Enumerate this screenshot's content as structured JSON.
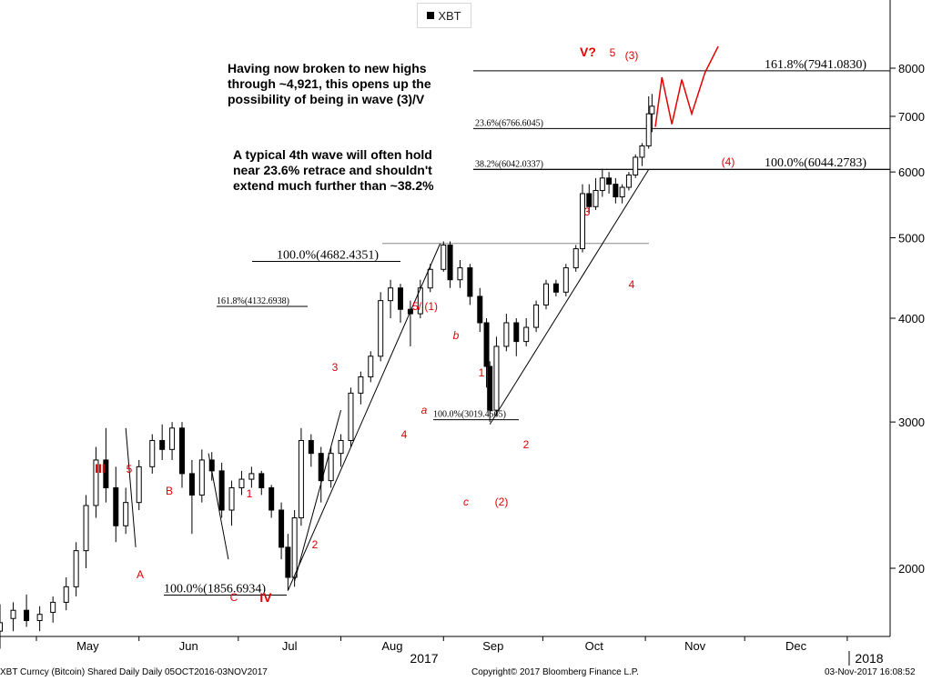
{
  "legend": {
    "label": "XBT"
  },
  "annotations": {
    "note1": [
      "Having now broken to new highs",
      "through ~4,921, this opens up the",
      "possibility of being in wave (3)/V"
    ],
    "note2": [
      "A typical 4th wave will often hold",
      "near 23.6% retrace and shouldn't",
      "extend much further than ~38.2%"
    ]
  },
  "footer": {
    "left": "XBT Curncy (Bitcoin) Shared Daily  Daily 05OCT2016-03NOV2017",
    "center": "Copyright© 2017 Bloomberg Finance L.P.",
    "right": "03-Nov-2017 16:08:52"
  },
  "colors": {
    "wave_label": "#e00000",
    "candle": "#000000",
    "projection": "#e00000"
  },
  "chart_data": {
    "type": "candlestick",
    "x_axis": {
      "months": [
        "May",
        "Jun",
        "Jul",
        "Aug",
        "Sep",
        "Oct",
        "Nov",
        "Dec"
      ],
      "year_labels": [
        "2017",
        "2018"
      ],
      "range": [
        "2017-04-20",
        "2018-01-20"
      ]
    },
    "y_axis": {
      "ticks": [
        2000,
        3000,
        4000,
        5000,
        6000,
        7000,
        8000
      ],
      "range": [
        1500,
        8700
      ],
      "position": "right"
    },
    "series": [
      {
        "values": [
          [
            "2017-04-20",
            1680,
            1810,
            1600,
            1720
          ],
          [
            "2017-04-24",
            1740,
            1820,
            1680,
            1780
          ],
          [
            "2017-04-28",
            1780,
            1860,
            1700,
            1730
          ],
          [
            "2017-05-02",
            1730,
            1800,
            1680,
            1760
          ],
          [
            "2017-05-06",
            1770,
            1850,
            1720,
            1820
          ],
          [
            "2017-05-10",
            1820,
            1950,
            1780,
            1900
          ],
          [
            "2017-05-13",
            1900,
            2150,
            1850,
            2100
          ],
          [
            "2017-05-16",
            2100,
            2450,
            2000,
            2380
          ],
          [
            "2017-05-19",
            2380,
            2800,
            2300,
            2700
          ],
          [
            "2017-05-22",
            2700,
            2950,
            2400,
            2500
          ],
          [
            "2017-05-25",
            2500,
            2650,
            2150,
            2250
          ],
          [
            "2017-05-28",
            2250,
            2500,
            2200,
            2400
          ],
          [
            "2017-06-01",
            2400,
            2700,
            2350,
            2650
          ],
          [
            "2017-06-05",
            2650,
            2900,
            2600,
            2850
          ],
          [
            "2017-06-08",
            2850,
            2980,
            2700,
            2780
          ],
          [
            "2017-06-11",
            2780,
            3000,
            2700,
            2950
          ],
          [
            "2017-06-14",
            2950,
            3000,
            2500,
            2600
          ],
          [
            "2017-06-17",
            2600,
            2700,
            2200,
            2450
          ],
          [
            "2017-06-20",
            2450,
            2780,
            2400,
            2700
          ],
          [
            "2017-06-23",
            2700,
            2760,
            2550,
            2620
          ],
          [
            "2017-06-26",
            2620,
            2680,
            2300,
            2350
          ],
          [
            "2017-06-29",
            2350,
            2550,
            2250,
            2500
          ],
          [
            "2017-07-02",
            2500,
            2620,
            2450,
            2560
          ],
          [
            "2017-07-05",
            2560,
            2650,
            2500,
            2600
          ],
          [
            "2017-07-08",
            2600,
            2620,
            2450,
            2500
          ],
          [
            "2017-07-11",
            2500,
            2520,
            2300,
            2350
          ],
          [
            "2017-07-14",
            2350,
            2400,
            2050,
            2120
          ],
          [
            "2017-07-16",
            2120,
            2200,
            1880,
            1950
          ],
          [
            "2017-07-18",
            1950,
            2350,
            1900,
            2300
          ],
          [
            "2017-07-20",
            2300,
            2950,
            2250,
            2850
          ],
          [
            "2017-07-23",
            2850,
            2900,
            2650,
            2750
          ],
          [
            "2017-07-26",
            2750,
            2800,
            2400,
            2550
          ],
          [
            "2017-07-29",
            2550,
            2800,
            2500,
            2750
          ],
          [
            "2017-08-01",
            2750,
            2900,
            2650,
            2850
          ],
          [
            "2017-08-04",
            2850,
            3300,
            2800,
            3250
          ],
          [
            "2017-08-07",
            3250,
            3450,
            3150,
            3400
          ],
          [
            "2017-08-10",
            3400,
            3650,
            3350,
            3600
          ],
          [
            "2017-08-13",
            3600,
            4300,
            3550,
            4200
          ],
          [
            "2017-08-16",
            4200,
            4450,
            4000,
            4350
          ],
          [
            "2017-08-19",
            4350,
            4400,
            3950,
            4100
          ],
          [
            "2017-08-22",
            4100,
            4200,
            3700,
            4050
          ],
          [
            "2017-08-25",
            4050,
            4450,
            4000,
            4350
          ],
          [
            "2017-08-28",
            4350,
            4650,
            4300,
            4580
          ],
          [
            "2017-09-01",
            4580,
            4950,
            4550,
            4900
          ],
          [
            "2017-09-03",
            4900,
            4950,
            4350,
            4450
          ],
          [
            "2017-09-06",
            4450,
            4700,
            4350,
            4600
          ],
          [
            "2017-09-09",
            4600,
            4650,
            4150,
            4250
          ],
          [
            "2017-09-12",
            4250,
            4350,
            3850,
            3950
          ],
          [
            "2017-09-14",
            3950,
            4000,
            3300,
            3500
          ],
          [
            "2017-09-15",
            3500,
            3550,
            3000,
            3100
          ],
          [
            "2017-09-17",
            3100,
            3800,
            3050,
            3700
          ],
          [
            "2017-09-20",
            3700,
            4050,
            3650,
            3950
          ],
          [
            "2017-09-23",
            3950,
            4000,
            3600,
            3750
          ],
          [
            "2017-09-26",
            3750,
            4000,
            3700,
            3900
          ],
          [
            "2017-09-29",
            3900,
            4200,
            3850,
            4150
          ],
          [
            "2017-10-02",
            4150,
            4450,
            4100,
            4400
          ],
          [
            "2017-10-05",
            4400,
            4450,
            4250,
            4300
          ],
          [
            "2017-10-08",
            4300,
            4650,
            4250,
            4600
          ],
          [
            "2017-10-11",
            4600,
            4900,
            4550,
            4850
          ],
          [
            "2017-10-13",
            4850,
            5800,
            4800,
            5650
          ],
          [
            "2017-10-15",
            5650,
            5800,
            5350,
            5450
          ],
          [
            "2017-10-17",
            5450,
            5900,
            5400,
            5700
          ],
          [
            "2017-10-19",
            5700,
            6050,
            5600,
            5900
          ],
          [
            "2017-10-21",
            5900,
            6000,
            5650,
            5800
          ],
          [
            "2017-10-23",
            5800,
            5900,
            5500,
            5600
          ],
          [
            "2017-10-25",
            5600,
            5800,
            5500,
            5750
          ],
          [
            "2017-10-27",
            5750,
            6000,
            5700,
            5950
          ],
          [
            "2017-10-29",
            5950,
            6300,
            5900,
            6250
          ],
          [
            "2017-10-31",
            6250,
            6500,
            6100,
            6450
          ],
          [
            "2017-11-02",
            6450,
            7400,
            6400,
            7050
          ],
          [
            "2017-11-03",
            7050,
            7450,
            6700,
            7200
          ]
        ]
      },
      {
        "name": "",
        "type": "line",
        "values": [
          [
            "2017-11-04",
            6800
          ],
          [
            "2017-11-06",
            7800
          ],
          [
            "2017-11-09",
            6850
          ],
          [
            "2017-11-12",
            7750
          ],
          [
            "2017-11-15",
            7050
          ],
          [
            "2017-11-19",
            7900
          ],
          [
            "2017-11-23",
            8500
          ]
        ]
      }
    ],
    "fib_levels": [
      {
        "label": "161.8%(7941.0830)",
        "value": 7941.083
      },
      {
        "label": "23.6%(6766.6045)",
        "value": 6766.6045
      },
      {
        "label": "38.2%(6042.0337)",
        "value": 6042.0337
      },
      {
        "label": "100.0%(6044.2783)",
        "value": 6044.2783
      },
      {
        "label": "",
        "value": 4921
      },
      {
        "label": "100.0%(4682.4351)",
        "value": 4682.4351
      },
      {
        "label": "161.8%(4132.6938)",
        "value": 4132.6938
      },
      {
        "label": "100.0%(3019.4565)",
        "value": 3019.4565
      },
      {
        "label": "100.0%(1856.6934)",
        "value": 1856.6934
      }
    ],
    "wave_labels": [
      "III",
      "5",
      "A",
      "B",
      "C",
      "IV",
      "1",
      "2",
      "3",
      "4",
      "5/ (1)",
      "a",
      "b",
      "c",
      "(2)",
      "1",
      "2",
      "3",
      "4",
      "V?",
      "5",
      "(3)",
      "(4)"
    ]
  }
}
